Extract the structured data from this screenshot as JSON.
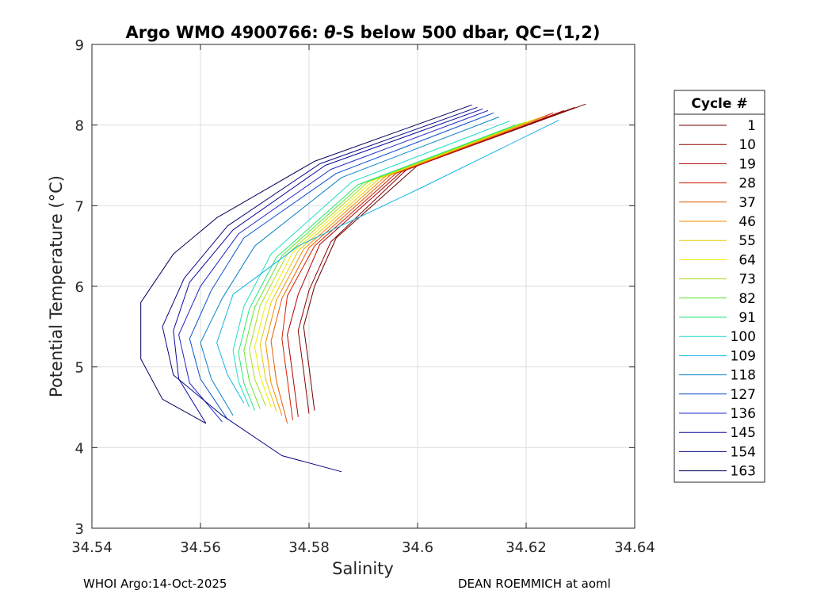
{
  "chart_data": {
    "type": "line",
    "title": "Argo WMO 4900766: θ-S below 500 dbar,  QC=(1,2)",
    "title_parts": {
      "prefix": "Argo WMO 4900766: ",
      "theta": "θ",
      "suffix": "-S below 500 dbar,  QC=(1,2)"
    },
    "xlabel": "Salinity",
    "ylabel": "Potential Temperature (°C)",
    "xlim": [
      34.54,
      34.64
    ],
    "ylim": [
      3,
      9
    ],
    "xticks": [
      34.54,
      34.56,
      34.58,
      34.6,
      34.62,
      34.64
    ],
    "xtick_labels": [
      "34.54",
      "34.56",
      "34.58",
      "34.6",
      "34.62",
      "34.64"
    ],
    "yticks": [
      3,
      4,
      5,
      6,
      7,
      8,
      9
    ],
    "ytick_labels": [
      "3",
      "4",
      "5",
      "6",
      "7",
      "8",
      "9"
    ],
    "grid": true,
    "legend_title": "Cycle #",
    "legend_position": "outside-right",
    "series": [
      {
        "name": "1",
        "color": "#6b0000",
        "x": [
          34.631,
          34.6,
          34.585,
          34.581,
          34.579,
          34.58,
          34.581
        ],
        "y": [
          8.26,
          7.5,
          6.6,
          6.0,
          5.5,
          5.0,
          4.46
        ]
      },
      {
        "name": "10",
        "color": "#8c0000",
        "x": [
          34.629,
          34.598,
          34.584,
          34.58,
          34.578,
          34.579,
          34.58
        ],
        "y": [
          8.22,
          7.45,
          6.55,
          5.95,
          5.45,
          4.95,
          4.42
        ]
      },
      {
        "name": "19",
        "color": "#b00000",
        "x": [
          34.627,
          34.597,
          34.582,
          34.578,
          34.576,
          34.577,
          34.578
        ],
        "y": [
          8.18,
          7.42,
          6.52,
          5.9,
          5.4,
          4.9,
          4.38
        ]
      },
      {
        "name": "28",
        "color": "#d21e00",
        "x": [
          34.625,
          34.596,
          34.581,
          34.576,
          34.575,
          34.576,
          34.577
        ],
        "y": [
          8.15,
          7.4,
          6.5,
          5.88,
          5.35,
          4.85,
          4.34
        ]
      },
      {
        "name": "37",
        "color": "#e65a00",
        "x": [
          34.624,
          34.595,
          34.58,
          34.575,
          34.573,
          34.574,
          34.576
        ],
        "y": [
          8.12,
          7.38,
          6.48,
          5.85,
          5.32,
          4.82,
          4.3
        ]
      },
      {
        "name": "46",
        "color": "#f28c00",
        "x": [
          34.623,
          34.594,
          34.579,
          34.574,
          34.572,
          34.573,
          34.575
        ],
        "y": [
          8.1,
          7.36,
          6.46,
          5.83,
          5.3,
          4.8,
          4.4
        ]
      },
      {
        "name": "55",
        "color": "#e6c800",
        "x": [
          34.622,
          34.593,
          34.578,
          34.573,
          34.571,
          34.572,
          34.574
        ],
        "y": [
          8.08,
          7.34,
          6.44,
          5.8,
          5.28,
          4.85,
          4.45
        ]
      },
      {
        "name": "64",
        "color": "#f0f000",
        "x": [
          34.621,
          34.592,
          34.577,
          34.572,
          34.57,
          34.571,
          34.573
        ],
        "y": [
          8.06,
          7.32,
          6.42,
          5.78,
          5.25,
          4.88,
          4.5
        ]
      },
      {
        "name": "73",
        "color": "#aadc1e",
        "x": [
          34.62,
          34.591,
          34.576,
          34.571,
          34.569,
          34.57,
          34.572
        ],
        "y": [
          8.04,
          7.3,
          6.4,
          5.76,
          5.22,
          4.85,
          4.52
        ]
      },
      {
        "name": "82",
        "color": "#64e632",
        "x": [
          34.619,
          34.59,
          34.575,
          34.57,
          34.568,
          34.569,
          34.571
        ],
        "y": [
          8.02,
          7.28,
          6.38,
          5.74,
          5.2,
          4.82,
          4.48
        ]
      },
      {
        "name": "91",
        "color": "#28e678",
        "x": [
          34.618,
          34.589,
          34.574,
          34.569,
          34.567,
          34.568,
          34.57
        ],
        "y": [
          8.0,
          7.26,
          6.36,
          5.72,
          5.18,
          4.8,
          4.46
        ]
      },
      {
        "name": "100",
        "color": "#1edcc8",
        "x": [
          34.617,
          34.588,
          34.573,
          34.568,
          34.566,
          34.567,
          34.569
        ],
        "y": [
          8.05,
          7.3,
          6.4,
          5.75,
          5.2,
          4.82,
          4.5
        ]
      },
      {
        "name": "109",
        "color": "#14b4e6",
        "x": [
          34.626,
          34.6,
          34.578,
          34.566,
          34.563,
          34.565,
          34.568
        ],
        "y": [
          8.06,
          7.2,
          6.5,
          5.9,
          5.3,
          4.9,
          4.55
        ]
      },
      {
        "name": "118",
        "color": "#0a82c8",
        "x": [
          34.615,
          34.586,
          34.57,
          34.564,
          34.56,
          34.562,
          34.566
        ],
        "y": [
          8.1,
          7.35,
          6.5,
          5.85,
          5.3,
          4.85,
          4.4
        ]
      },
      {
        "name": "127",
        "color": "#0a50d2",
        "x": [
          34.614,
          34.585,
          34.568,
          34.562,
          34.558,
          34.56,
          34.565
        ],
        "y": [
          8.15,
          7.4,
          6.6,
          5.95,
          5.35,
          4.85,
          4.35
        ]
      },
      {
        "name": "136",
        "color": "#1e28c8",
        "x": [
          34.613,
          34.584,
          34.567,
          34.56,
          34.556,
          34.558,
          34.564
        ],
        "y": [
          8.18,
          7.45,
          6.65,
          6.0,
          5.4,
          4.8,
          4.32
        ]
      },
      {
        "name": "145",
        "color": "#0a0aa0",
        "x": [
          34.612,
          34.583,
          34.566,
          34.558,
          34.555,
          34.556,
          34.561
        ],
        "y": [
          8.2,
          7.5,
          6.7,
          6.05,
          5.45,
          4.85,
          4.3
        ]
      },
      {
        "name": "154",
        "color": "#050582",
        "x": [
          34.611,
          34.582,
          34.565,
          34.557,
          34.553,
          34.555,
          34.564,
          34.575,
          34.586
        ],
        "y": [
          8.22,
          7.52,
          6.75,
          6.1,
          5.5,
          4.9,
          4.4,
          3.9,
          3.7
        ]
      },
      {
        "name": "163",
        "color": "#00005a",
        "x": [
          34.61,
          34.581,
          34.563,
          34.555,
          34.549,
          34.549,
          34.553,
          34.561
        ],
        "y": [
          8.25,
          7.55,
          6.85,
          6.4,
          5.8,
          5.1,
          4.6,
          4.3
        ]
      }
    ]
  },
  "footer": {
    "left": "WHOI Argo:14-Oct-2025",
    "right": "DEAN ROEMMICH at aoml"
  }
}
